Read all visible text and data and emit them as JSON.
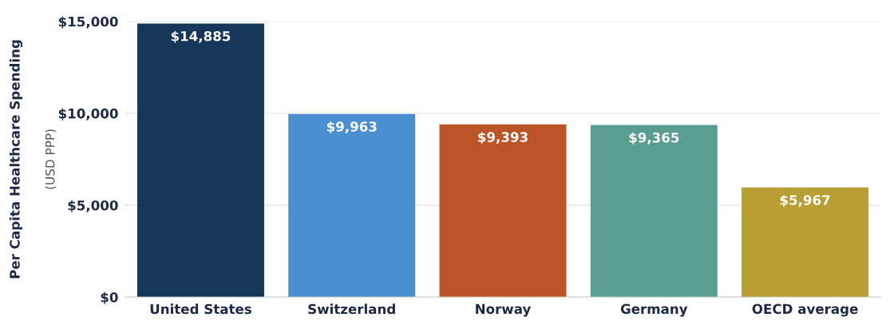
{
  "chart_data": {
    "type": "bar",
    "ylabel": "Per Capita Healthcare Spending\n(USD PPP)",
    "categories": [
      "United States",
      "Switzerland",
      "Norway",
      "Germany",
      "OECD average"
    ],
    "values": [
      14885,
      9963,
      9393,
      9365,
      5967
    ],
    "colors": [
      "#17375a",
      "#4a90ce",
      "#bb5428",
      "#5a9e8f",
      "#b89e33"
    ],
    "value_labels": [
      "$14,885",
      "$9,963",
      "$9,393",
      "$9,365",
      "$5,967"
    ],
    "ylim": [
      0,
      15000
    ],
    "yticks": [
      {
        "value": 0,
        "label": "$0"
      },
      {
        "value": 5000,
        "label": "$5,000"
      },
      {
        "value": 10000,
        "label": "$10,000"
      },
      {
        "value": 15000,
        "label": "$15,000"
      }
    ],
    "grid": "y"
  }
}
